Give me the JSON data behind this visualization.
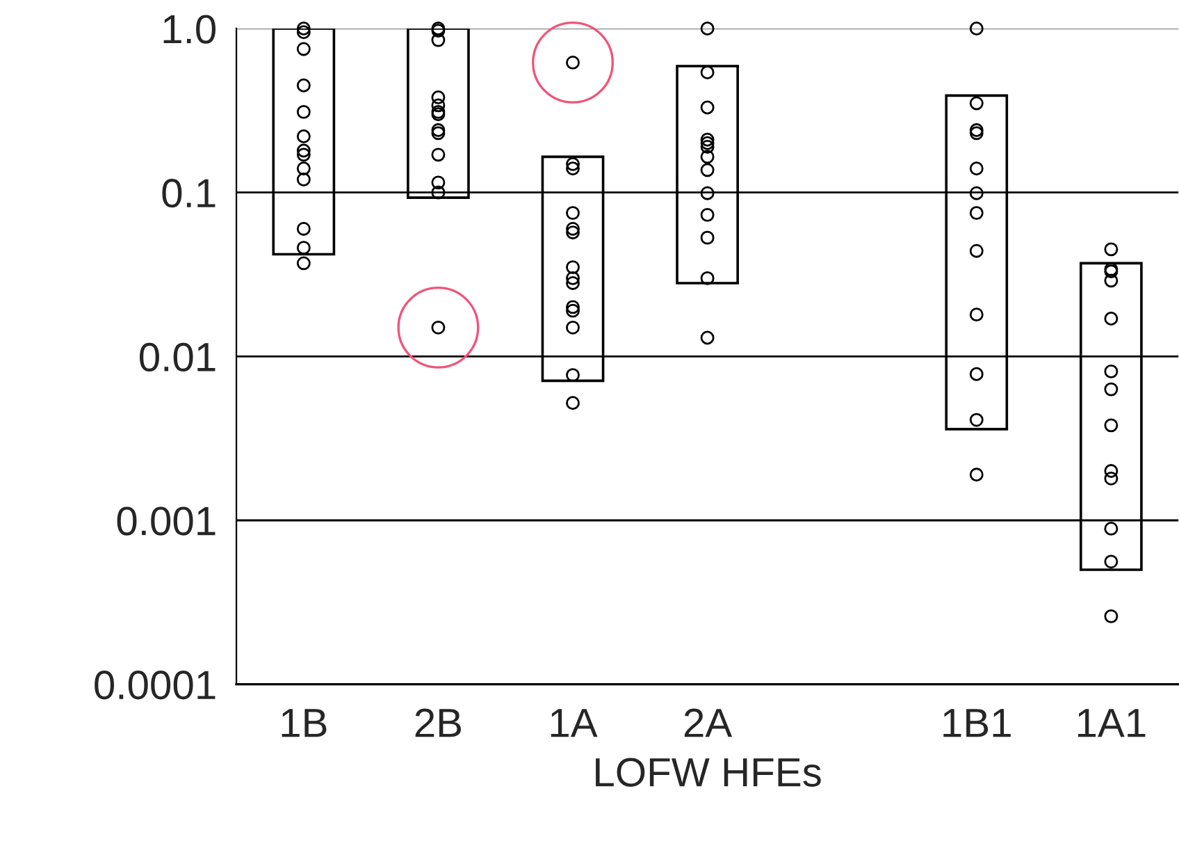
{
  "chart_data": {
    "type": "bar",
    "xlabel": "LOFW HFEs",
    "categories": [
      "1B",
      "2B",
      "1A",
      "2A",
      null,
      "1B1",
      "1A1"
    ],
    "series": [
      {
        "color": "#000000",
        "base": [
          0.042,
          0.093,
          0.0071,
          0.028,
          null,
          0.0036,
          0.0005
        ],
        "values": [
          0.958,
          0.907,
          0.1579,
          0.562,
          null,
          0.3864,
          0.0365
        ]
      },
      {
        "type": "scatter",
        "color": "#000000",
        "x": [
          "1B",
          "1B",
          "1B",
          "1B",
          "1B",
          "1B",
          "1B",
          "1B",
          "1B",
          "1B",
          "1B",
          "1B",
          "1B",
          "2B",
          "2B",
          "2B",
          "2B",
          "2B",
          "2B",
          "2B",
          "2B",
          "2B",
          "2B",
          "2B",
          "2B",
          "2B",
          "1A",
          "1A",
          "1A",
          "1A",
          "1A",
          "1A",
          "1A",
          "1A",
          "1A",
          "1A",
          "1A",
          "1A",
          "1A",
          "1A",
          "2A",
          "2A",
          "2A",
          "2A",
          "2A",
          "2A",
          "2A",
          "2A",
          "2A",
          "2A",
          "2A",
          "2A",
          "2A",
          "1B1",
          "1B1",
          "1B1",
          "1B1",
          "1B1",
          "1B1",
          "1B1",
          "1B1",
          "1B1",
          "1B1",
          "1B1",
          "1B1",
          "1A1",
          "1A1",
          "1A1",
          "1A1",
          "1A1",
          "1A1",
          "1A1",
          "1A1",
          "1A1",
          "1A1",
          "1A1",
          "1A1",
          "1A1"
        ],
        "values": [
          1.0,
          0.95,
          0.75,
          0.45,
          0.31,
          0.22,
          0.18,
          0.17,
          0.14,
          0.12,
          0.06,
          0.046,
          0.037,
          1.0,
          0.97,
          0.85,
          0.38,
          0.34,
          0.31,
          0.3,
          0.24,
          0.23,
          0.17,
          0.115,
          0.1,
          0.015,
          0.62,
          0.149,
          0.14,
          0.075,
          0.06,
          0.057,
          0.035,
          0.03,
          0.028,
          0.02,
          0.019,
          0.015,
          0.0077,
          0.0052,
          1.0,
          0.54,
          0.33,
          0.21,
          0.2,
          0.19,
          0.165,
          0.137,
          0.099,
          0.073,
          0.053,
          0.03,
          0.013,
          1.0,
          0.35,
          0.24,
          0.23,
          0.14,
          0.099,
          0.075,
          0.044,
          0.018,
          0.0078,
          0.0041,
          0.0019,
          0.045,
          0.034,
          0.033,
          0.029,
          0.017,
          0.0081,
          0.0063,
          0.0038,
          0.002,
          0.0018,
          0.00089,
          0.00056,
          0.00026
        ]
      },
      {
        "type": "bubble",
        "color": "#f0547a",
        "x": [
          "2B",
          "1A"
        ],
        "values": [
          0.015,
          0.62
        ],
        "sizes": [
          1,
          1
        ]
      }
    ],
    "log": "y",
    "ylim": [
      0.0001,
      1.0
    ],
    "yticks": [
      {
        "value": 1.0,
        "label": "1.0"
      },
      0.1,
      0.01,
      0.001,
      0.0001
    ],
    "grid": "y",
    "marker": "circle"
  }
}
